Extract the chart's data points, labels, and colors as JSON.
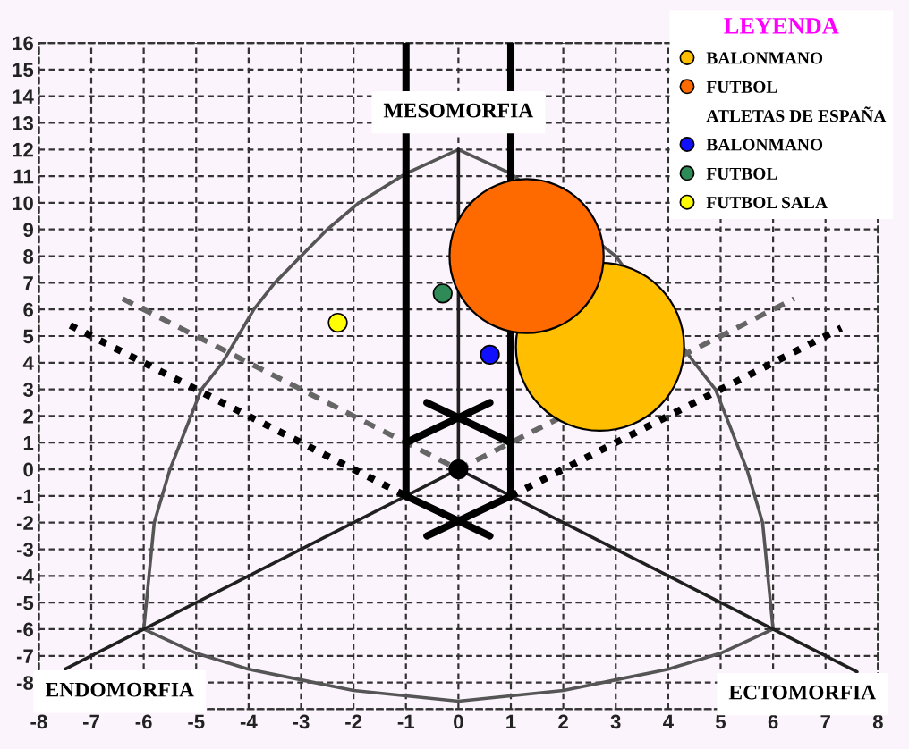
{
  "chart_data": {
    "type": "scatter",
    "legend_title": "LEYENDA",
    "series": [
      {
        "type": "line",
        "color": "#555555",
        "line_style": "solid",
        "x": [
          -6,
          -5.9,
          -5.8,
          -5.5,
          -5.1,
          -4.9,
          -4.5,
          -4.2,
          -3.9,
          -3.5,
          -3.0,
          -2.5,
          -1.9,
          -1.0,
          0
        ],
        "values": [
          -6,
          -4,
          -2,
          0,
          2,
          3,
          4,
          5,
          6,
          7,
          8,
          9,
          10,
          11.1,
          12
        ]
      },
      {
        "type": "line",
        "color": "#555555",
        "line_style": "solid",
        "x": [
          0,
          1.0,
          3.0,
          4.5,
          4.9,
          5.1,
          5.5,
          5.8,
          5.9,
          6
        ],
        "values": [
          12,
          11.1,
          8,
          4,
          3,
          2,
          0,
          -2,
          -4,
          -6
        ]
      },
      {
        "type": "line",
        "color": "#555555",
        "line_style": "solid",
        "x": [
          -6,
          -5,
          -4,
          -3,
          -2,
          -1,
          0,
          1,
          2,
          3,
          4,
          5,
          6
        ],
        "values": [
          -6,
          -6.9,
          -7.5,
          -7.9,
          -8.3,
          -8.5,
          -8.7,
          -8.5,
          -8.3,
          -7.9,
          -7.5,
          -6.9,
          -6
        ]
      },
      {
        "type": "line",
        "color": "#202020",
        "line_style": "solid",
        "x": [
          0,
          0
        ],
        "values": [
          0,
          12
        ]
      },
      {
        "type": "line",
        "color": "#202020",
        "line_style": "solid",
        "x": [
          -7.5,
          0
        ],
        "values": [
          -7.5,
          0
        ]
      },
      {
        "type": "line",
        "color": "#202020",
        "line_style": "solid",
        "x": [
          0,
          7.6
        ],
        "values": [
          0,
          -7.6
        ]
      },
      {
        "type": "line",
        "color": "#666666",
        "line_style": "dashed",
        "x": [
          -6.4,
          0,
          6.4
        ],
        "values": [
          6.4,
          0,
          6.4
        ]
      },
      {
        "type": "line",
        "color": "#000000",
        "line_style": "dotted",
        "x": [
          -7.4,
          -1
        ],
        "values": [
          5.4,
          -1
        ]
      },
      {
        "type": "line",
        "color": "#000000",
        "line_style": "dotted",
        "x": [
          1,
          7.3
        ],
        "values": [
          -1,
          5.3
        ]
      },
      {
        "type": "line",
        "color": "#000000",
        "line_style": "solid",
        "x": [
          -1,
          -1
        ],
        "values": [
          -1,
          12.6
        ]
      },
      {
        "type": "line",
        "color": "#000000",
        "line_style": "solid",
        "x": [
          -1,
          -1
        ],
        "values": [
          14.2,
          16
        ]
      },
      {
        "type": "line",
        "color": "#000000",
        "line_style": "solid",
        "x": [
          1,
          1
        ],
        "values": [
          -1,
          12.6
        ]
      },
      {
        "type": "line",
        "color": "#000000",
        "line_style": "solid",
        "x": [
          1,
          1
        ],
        "values": [
          14.2,
          16
        ]
      },
      {
        "type": "line",
        "color": "#000000",
        "line_style": "solid",
        "x": [
          -1,
          0.6
        ],
        "values": [
          1,
          2.5
        ]
      },
      {
        "type": "line",
        "color": "#000000",
        "line_style": "solid",
        "x": [
          -0.6,
          1
        ],
        "values": [
          2.5,
          1
        ]
      },
      {
        "type": "line",
        "color": "#000000",
        "line_style": "solid",
        "x": [
          -1,
          0.6
        ],
        "values": [
          -1,
          -2.5
        ]
      },
      {
        "type": "line",
        "color": "#000000",
        "line_style": "solid",
        "x": [
          -0.6,
          1
        ],
        "values": [
          -2.5,
          -1
        ]
      },
      {
        "color": "#000000",
        "marker": "circle",
        "x": [
          0
        ],
        "values": [
          0
        ]
      },
      {
        "name": "BALONMANO",
        "type": "bubble",
        "color": "#ffbf00",
        "marker": "circle",
        "x": [
          2.7
        ],
        "values": [
          4.6
        ],
        "sizes": [
          1
        ]
      },
      {
        "name": "FUTBOL",
        "type": "bubble",
        "color": "#ff6a00",
        "marker": "circle",
        "x": [
          1.3
        ],
        "values": [
          8.0
        ],
        "sizes": [
          0.84
        ]
      },
      {
        "name": "BALONMANO",
        "color": "#1010ff",
        "marker": "circle",
        "x": [
          0.6
        ],
        "values": [
          4.3
        ]
      },
      {
        "name": "FUTBOL",
        "color": "#2e8b57",
        "marker": "circle",
        "x": [
          -0.3
        ],
        "values": [
          6.6
        ]
      },
      {
        "name": "FUTBOL SALA",
        "color": "#ffff00",
        "marker": "circle",
        "x": [
          -2.3
        ],
        "values": [
          5.5
        ]
      }
    ],
    "annotations": [
      "ATLETAS DE ESPAÑA",
      {
        "text": "MESOMORFIA",
        "x": 0,
        "y": 12
      },
      {
        "text": "ENDOMORFIA",
        "x": -7.5,
        "y": -7.5
      },
      {
        "text": "ECTOMORFIA",
        "x": 7.6,
        "y": -7.6
      }
    ],
    "xlim": [
      -8,
      8
    ],
    "ylim": [
      -9,
      16
    ],
    "xticks": [
      -8,
      -7,
      -6,
      -5,
      -4,
      -3,
      -2,
      -1,
      0,
      1,
      2,
      3,
      4,
      5,
      6,
      7,
      8
    ],
    "yticks": [
      {
        "value": -9,
        "label": null
      },
      -8,
      -7,
      -6,
      -5,
      -4,
      -3,
      -2,
      -1,
      0,
      1,
      2,
      3,
      4,
      5,
      6,
      7,
      8,
      9,
      10,
      11,
      12,
      13,
      14,
      15,
      16
    ],
    "grid": true,
    "legend": "top right"
  }
}
